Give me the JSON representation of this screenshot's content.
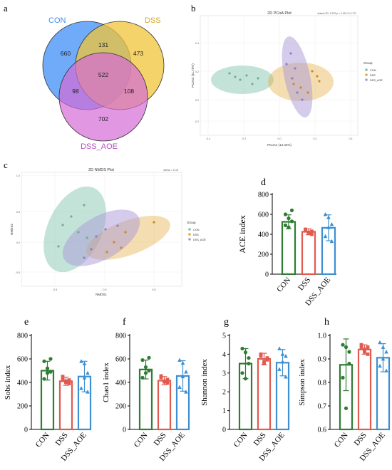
{
  "panels": {
    "a": {
      "letter": "a",
      "sets": [
        {
          "name": "CON",
          "color": "#3f8ff5"
        },
        {
          "name": "DSS",
          "color": "#f2c43a"
        },
        {
          "name": "DSS_AOE",
          "color": "#d46bd6"
        }
      ],
      "counts": {
        "con_only": "660",
        "con_dss": "131",
        "dss_only": "473",
        "all": "522",
        "con_aoe": "98",
        "dss_aoe": "108",
        "aoe_only": "702"
      }
    },
    "b": {
      "letter": "b",
      "title": "2D PCoA Plot",
      "stats": "Adonis R2: 0.222   p = 0.001   F=2.171",
      "xlabel": "PCoA1 (14.44%)",
      "ylabel": "PCoA2 (11.73%)",
      "xticks": [
        "-0.4",
        "-0.2",
        "0.0",
        "0.2",
        "0.4"
      ],
      "yticks": [
        "0.4",
        "0.2",
        "0.0",
        "-0.2"
      ],
      "legend_title": "Group",
      "legend": [
        "CON",
        "DSS",
        "DSS_AOE"
      ],
      "colors": [
        "#7cc2a8",
        "#e4a93a",
        "#a99ad6"
      ]
    },
    "c": {
      "letter": "c",
      "title": "2D NMDS Plot",
      "stats": "stress = 0.19",
      "xlabel": "NMDS1",
      "ylabel": "NMDS2",
      "xticks": [
        "-0.5",
        "0.0",
        "0.5"
      ],
      "yticks": [
        "1.0",
        "0.5",
        "0.0",
        "-0.5"
      ],
      "legend_title": "Group",
      "legend": [
        "CON",
        "DSS",
        "DSS_AOE"
      ],
      "colors": [
        "#7cc2a8",
        "#e4a93a",
        "#a99ad6"
      ]
    },
    "d": {
      "letter": "d"
    },
    "e": {
      "letter": "e"
    },
    "f": {
      "letter": "f"
    },
    "g": {
      "letter": "g"
    },
    "h": {
      "letter": "h"
    }
  },
  "chart_data": [
    {
      "panel": "d",
      "type": "bar",
      "ylabel": "ACE  index",
      "categories": [
        "CON",
        "DSS",
        "DSS_AOE"
      ],
      "values": [
        525,
        425,
        465
      ],
      "errors": [
        70,
        30,
        130
      ],
      "points": [
        [
          600,
          560,
          530,
          490,
          470,
          640
        ],
        [
          440,
          410,
          400,
          450,
          420,
          430
        ],
        [
          600,
          570,
          330,
          380,
          470,
          500
        ]
      ],
      "ylim": [
        0,
        800
      ],
      "yticks": [
        0,
        200,
        400,
        600,
        800
      ],
      "colors": [
        "#2e7d32",
        "#e05a4e",
        "#3d8fd1"
      ]
    },
    {
      "panel": "e",
      "type": "bar",
      "ylabel": "Sobs index",
      "categories": [
        "CON",
        "DSS",
        "DSS_AOE"
      ],
      "values": [
        500,
        410,
        450
      ],
      "errors": [
        80,
        35,
        130
      ],
      "points": [
        [
          580,
          520,
          490,
          430,
          480,
          600
        ],
        [
          430,
          400,
          390,
          450,
          410,
          420
        ],
        [
          580,
          560,
          320,
          350,
          440,
          480
        ]
      ],
      "ylim": [
        0,
        800
      ],
      "yticks": [
        0,
        200,
        400,
        600,
        800
      ],
      "colors": [
        "#2e7d32",
        "#e05a4e",
        "#3d8fd1"
      ]
    },
    {
      "panel": "f",
      "type": "bar",
      "ylabel": "Chao1 index",
      "categories": [
        "CON",
        "DSS",
        "DSS_AOE"
      ],
      "values": [
        510,
        415,
        455
      ],
      "errors": [
        80,
        35,
        130
      ],
      "points": [
        [
          590,
          530,
          500,
          440,
          480,
          610
        ],
        [
          440,
          405,
          395,
          455,
          410,
          425
        ],
        [
          590,
          565,
          320,
          360,
          450,
          490
        ]
      ],
      "ylim": [
        0,
        800
      ],
      "yticks": [
        0,
        200,
        400,
        600,
        800
      ],
      "colors": [
        "#2e7d32",
        "#e05a4e",
        "#3d8fd1"
      ]
    },
    {
      "panel": "g",
      "type": "bar",
      "ylabel": "Shannon index",
      "categories": [
        "CON",
        "DSS",
        "DSS_AOE"
      ],
      "values": [
        3.5,
        3.75,
        3.55
      ],
      "errors": [
        0.8,
        0.3,
        0.7
      ],
      "points": [
        [
          4.3,
          4.1,
          3.5,
          3.0,
          2.7,
          3.8
        ],
        [
          3.9,
          3.6,
          3.7,
          4.0,
          3.5,
          3.8
        ],
        [
          4.3,
          4.0,
          2.8,
          3.2,
          3.6,
          3.9
        ]
      ],
      "ylim": [
        0,
        5
      ],
      "yticks": [
        0,
        1,
        2,
        3,
        4,
        5
      ],
      "colors": [
        "#2e7d32",
        "#e05a4e",
        "#3d8fd1"
      ]
    },
    {
      "panel": "h",
      "type": "bar",
      "ylabel": "Simpson index",
      "categories": [
        "CON",
        "DSS",
        "DSS_AOE"
      ],
      "values": [
        0.875,
        0.94,
        0.905
      ],
      "errors": [
        0.11,
        0.02,
        0.06
      ],
      "points": [
        [
          0.96,
          0.95,
          0.88,
          0.82,
          0.69,
          0.93
        ],
        [
          0.96,
          0.93,
          0.92,
          0.95,
          0.94,
          0.95
        ],
        [
          0.97,
          0.95,
          0.85,
          0.87,
          0.9,
          0.93
        ]
      ],
      "ylim": [
        0.6,
        1.0
      ],
      "yticks": [
        0.6,
        0.7,
        0.8,
        0.9,
        1.0
      ],
      "colors": [
        "#2e7d32",
        "#e05a4e",
        "#3d8fd1"
      ]
    }
  ]
}
